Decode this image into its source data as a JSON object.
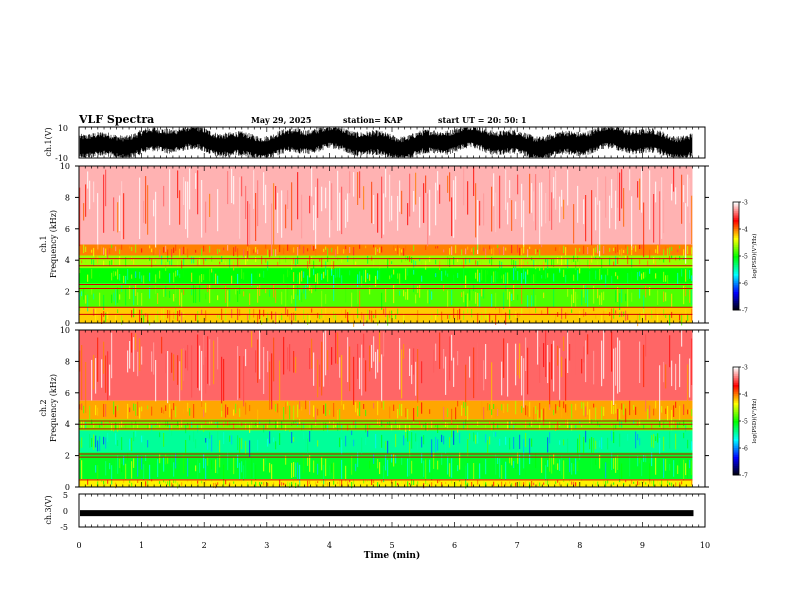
{
  "header": {
    "title": "VLF Spectra",
    "date": "May 29, 2025",
    "station": "station= KAP",
    "start": "start  UT =   20: 50: 1"
  },
  "colors": {
    "background": "#ffffff",
    "axis": "#000000",
    "colormap": [
      "#000000",
      "#0000ff",
      "#00ffff",
      "#00ff00",
      "#ffff00",
      "#ff0000",
      "#ffffff"
    ]
  },
  "chart_data": [
    {
      "type": "line",
      "id": "ch1-waveform",
      "ylabel": "ch.1(V)",
      "ylim": [
        -10,
        10
      ],
      "yticklabels": [
        "10",
        "-10"
      ],
      "xlim": [
        0,
        10
      ],
      "description_values": "dense noisy signal around 0 V"
    },
    {
      "type": "heatmap",
      "id": "ch1-spectrogram",
      "ylabel": "ch.1",
      "ylabel2": "Frequency (kHz)",
      "ylim": [
        0,
        10
      ],
      "yticks": [
        0,
        2,
        4,
        6,
        8,
        10
      ],
      "xlim": [
        0,
        10
      ],
      "data_end_min": 9.8,
      "bands": [
        {
          "from": 5.0,
          "to": 10.0,
          "level": -3.2
        },
        {
          "from": 4.3,
          "to": 5.0,
          "level": -4.0
        },
        {
          "from": 3.5,
          "to": 4.3,
          "level": -4.6
        },
        {
          "from": 2.5,
          "to": 3.5,
          "level": -5.0
        },
        {
          "from": 1.0,
          "to": 2.5,
          "level": -4.8
        },
        {
          "from": 0.0,
          "to": 1.0,
          "level": -4.2
        }
      ],
      "lines_khz": [
        0.55,
        1.0,
        2.2,
        2.45,
        3.65,
        4.1
      ],
      "colorbar": {
        "label": "log(PSD)(V²/Hz)",
        "ticks": [
          "-3",
          "-4",
          "-5",
          "-6",
          "-7"
        ],
        "range": [
          -7,
          -3
        ]
      }
    },
    {
      "type": "heatmap",
      "id": "ch2-spectrogram",
      "ylabel": "ch.2",
      "ylabel2": "Frequency (kHz)",
      "ylim": [
        0,
        10
      ],
      "yticks": [
        0,
        2,
        4,
        6,
        8,
        10
      ],
      "xlim": [
        0,
        10
      ],
      "data_end_min": 9.8,
      "bands": [
        {
          "from": 5.5,
          "to": 10.0,
          "level": -3.4
        },
        {
          "from": 4.3,
          "to": 5.5,
          "level": -4.1
        },
        {
          "from": 3.6,
          "to": 4.3,
          "level": -4.7
        },
        {
          "from": 2.2,
          "to": 3.6,
          "level": -5.4
        },
        {
          "from": 0.5,
          "to": 2.2,
          "level": -5.1
        },
        {
          "from": 0.0,
          "to": 0.5,
          "level": -4.3
        }
      ],
      "lines_khz": [
        0.45,
        1.9,
        2.1,
        3.7,
        4.0,
        4.2
      ],
      "colorbar": {
        "label": "log(PSD)(V²/Hz)",
        "ticks": [
          "-3",
          "-4",
          "-5",
          "-6",
          "-7"
        ],
        "range": [
          -7,
          -3
        ]
      }
    },
    {
      "type": "line",
      "id": "ch3-waveform",
      "ylabel": "ch.3(V)",
      "ylim": [
        -5,
        5
      ],
      "yticklabels": [
        "5",
        "0",
        "-5"
      ],
      "xlim": [
        0,
        10
      ],
      "level_v": -0.8,
      "xlabel": "Time (min)",
      "xticks": [
        0,
        1,
        2,
        3,
        4,
        5,
        6,
        7,
        8,
        9,
        10
      ]
    }
  ]
}
